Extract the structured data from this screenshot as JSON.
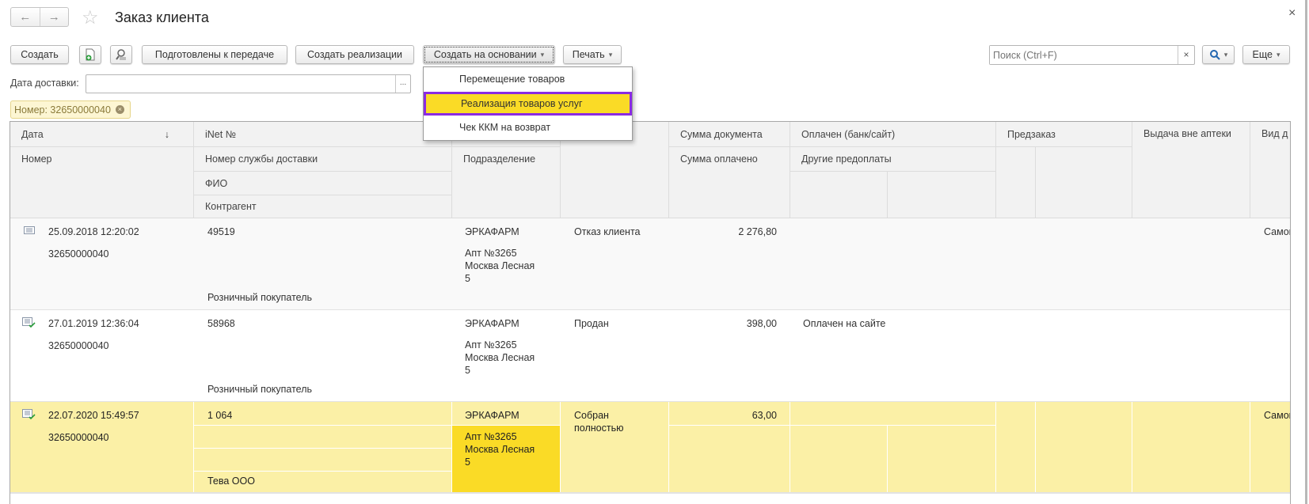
{
  "window": {
    "title": "Заказ клиента",
    "close": "×",
    "back_icon": "arrow-left-icon",
    "forward_icon": "arrow-right-icon",
    "favorite_icon": "star-icon"
  },
  "toolbar": {
    "create": "Создать",
    "prepared": "Подготовлены к передаче",
    "create_sales": "Создать реализации",
    "create_based_on": "Создать на основании",
    "print": "Печать",
    "search_placeholder": "Поиск (Ctrl+F)",
    "search_clear": "×",
    "more": "Еще",
    "dropdown_arrow": "▾"
  },
  "filters": {
    "delivery_date_label": "Дата доставки:",
    "delivery_date_value": "",
    "select_button": "...",
    "active_filter": "Номер: 32650000040"
  },
  "dropdown": {
    "items": [
      {
        "label": "Перемещение товаров"
      },
      {
        "label": "Реализация товаров услуг",
        "highlighted": true
      },
      {
        "label": "Чек ККМ на возврат"
      }
    ],
    "highlight_color": "#fadb26",
    "border_color": "#8a2be2"
  },
  "table": {
    "headers": {
      "date": "Дата",
      "sort_icon": "↓",
      "inet": "iNet №",
      "doc_sum": "Сумма документа",
      "paid": "Оплачен (банк/сайт)",
      "preorder": "Предзаказ",
      "outside": "Выдача вне аптеки",
      "kind": "Вид д",
      "number": "Номер",
      "delivery_no": "Номер службы доставки",
      "division": "Подразделение",
      "paid_sum": "Сумма оплачено",
      "other_prepay": "Другие предоплаты",
      "fio": "ФИО",
      "counterparty": "Контрагент"
    },
    "rows": [
      {
        "icon": "document-icon",
        "date": "25.09.2018 12:20:02",
        "number": "32650000040",
        "inet": "49519",
        "delivery_no": "",
        "fio": "",
        "counterparty": "Розничный покупатель",
        "org": "ЭРКАФАРМ",
        "division": [
          "Апт №3265",
          "Москва Лесная",
          "5"
        ],
        "status": "Отказ клиента",
        "sum": "2 276,80",
        "paid": "",
        "kind": "Самов"
      },
      {
        "icon": "document-posted-icon",
        "date": "27.01.2019 12:36:04",
        "number": "32650000040",
        "inet": "58968",
        "delivery_no": "",
        "fio": "",
        "counterparty": "Розничный покупатель",
        "org": "ЭРКАФАРМ",
        "division": [
          "Апт №3265",
          "Москва Лесная",
          "5"
        ],
        "status": "Продан",
        "sum": "398,00",
        "paid": "Оплачен на сайте",
        "kind": ""
      },
      {
        "icon": "document-posted-icon",
        "date": "22.07.2020 15:49:57",
        "number": "32650000040",
        "inet": "1 064",
        "delivery_no": "",
        "fio": "",
        "counterparty": "Тева ООО",
        "org": "ЭРКАФАРМ",
        "division": [
          "Апт №3265",
          "Москва Лесная",
          "5"
        ],
        "status": [
          "Собран",
          "полностью"
        ],
        "sum": "63,00",
        "paid": "",
        "kind": "Самов",
        "selected": true
      }
    ],
    "colors": {
      "selected_row": "#fbf0a6",
      "selected_cell": "#fadb26"
    }
  }
}
